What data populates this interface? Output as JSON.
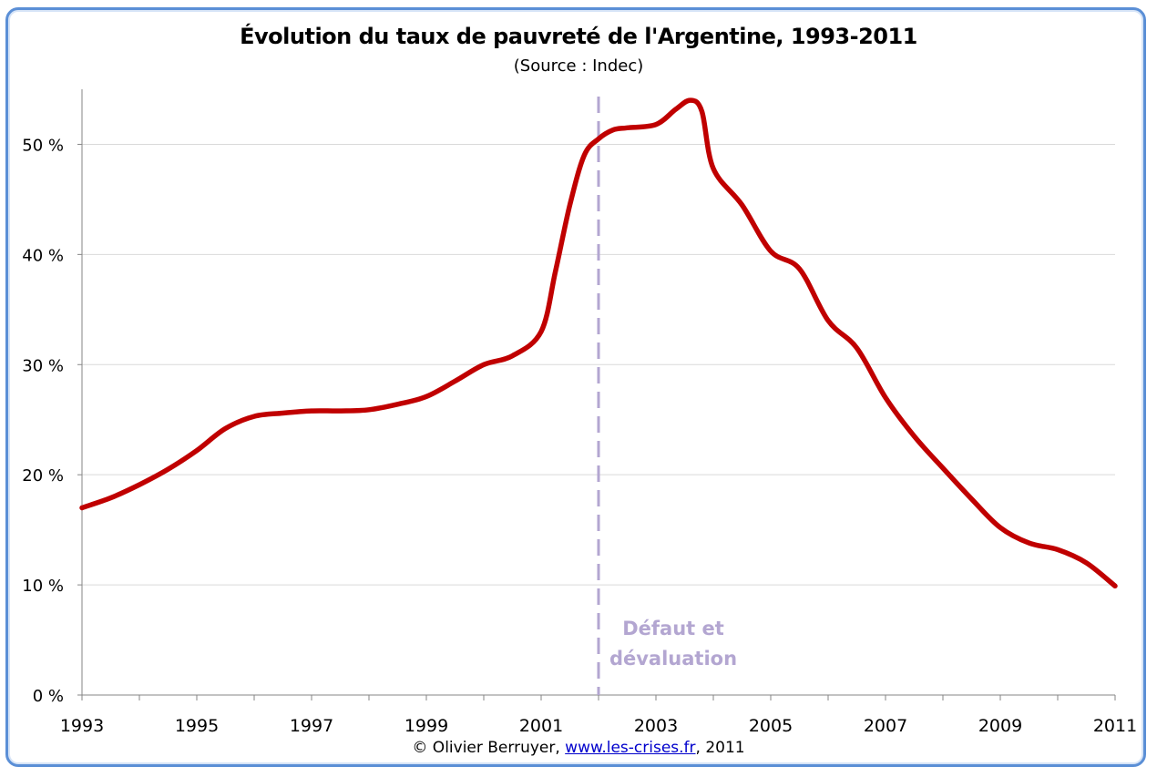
{
  "chart_data": {
    "type": "line",
    "title": "Évolution du taux de pauvreté de l'Argentine, 1993-2011",
    "subtitle": "(Source : Indec)",
    "xlabel": "",
    "ylabel": "",
    "xlim": [
      1993,
      2011
    ],
    "ylim": [
      0,
      55
    ],
    "x_ticks": [
      "1993",
      "1995",
      "1997",
      "1999",
      "2001",
      "2003",
      "2005",
      "2007",
      "2009",
      "2011"
    ],
    "y_ticks": [
      "0 %",
      "10 %",
      "20 %",
      "30 %",
      "40 %",
      "50 %"
    ],
    "y_tick_values": [
      0,
      10,
      20,
      30,
      40,
      50
    ],
    "grid": true,
    "legend": "none",
    "series": [
      {
        "color": "#c00000",
        "x": [
          1993,
          1993.5,
          1994,
          1994.5,
          1995,
          1995.5,
          1996,
          1996.5,
          1997,
          1997.5,
          1998,
          1998.5,
          1999,
          1999.5,
          2000,
          2000.5,
          2001,
          2001.25,
          2001.5,
          2001.75,
          2002,
          2002.25,
          2002.5,
          2003,
          2003.35,
          2003.6,
          2003.8,
          2004,
          2004.5,
          2005,
          2005.5,
          2006,
          2006.5,
          2007,
          2007.5,
          2008,
          2008.5,
          2009,
          2009.5,
          2010,
          2010.5,
          2011
        ],
        "y": [
          17,
          17.9,
          19.1,
          20.5,
          22.2,
          24.2,
          25.3,
          25.6,
          25.8,
          25.8,
          25.9,
          26.4,
          27.1,
          28.5,
          30.0,
          30.8,
          33.0,
          38.5,
          44.5,
          49.0,
          50.5,
          51.3,
          51.5,
          51.8,
          53.2,
          54.0,
          53.0,
          47.8,
          44.5,
          40.3,
          38.7,
          34.0,
          31.5,
          27.0,
          23.5,
          20.6,
          17.8,
          15.2,
          13.8,
          13.2,
          12.0,
          9.9
        ]
      }
    ],
    "annotations": [
      {
        "x": 2002,
        "line": "dashed",
        "color": "#b3a6d1",
        "text_lines": [
          "Défaut et",
          "dévaluation"
        ]
      }
    ]
  },
  "footer": {
    "prefix": "© Olivier Berruyer,",
    "link": "www.les-crises.fr",
    "suffix": ",  2011"
  }
}
